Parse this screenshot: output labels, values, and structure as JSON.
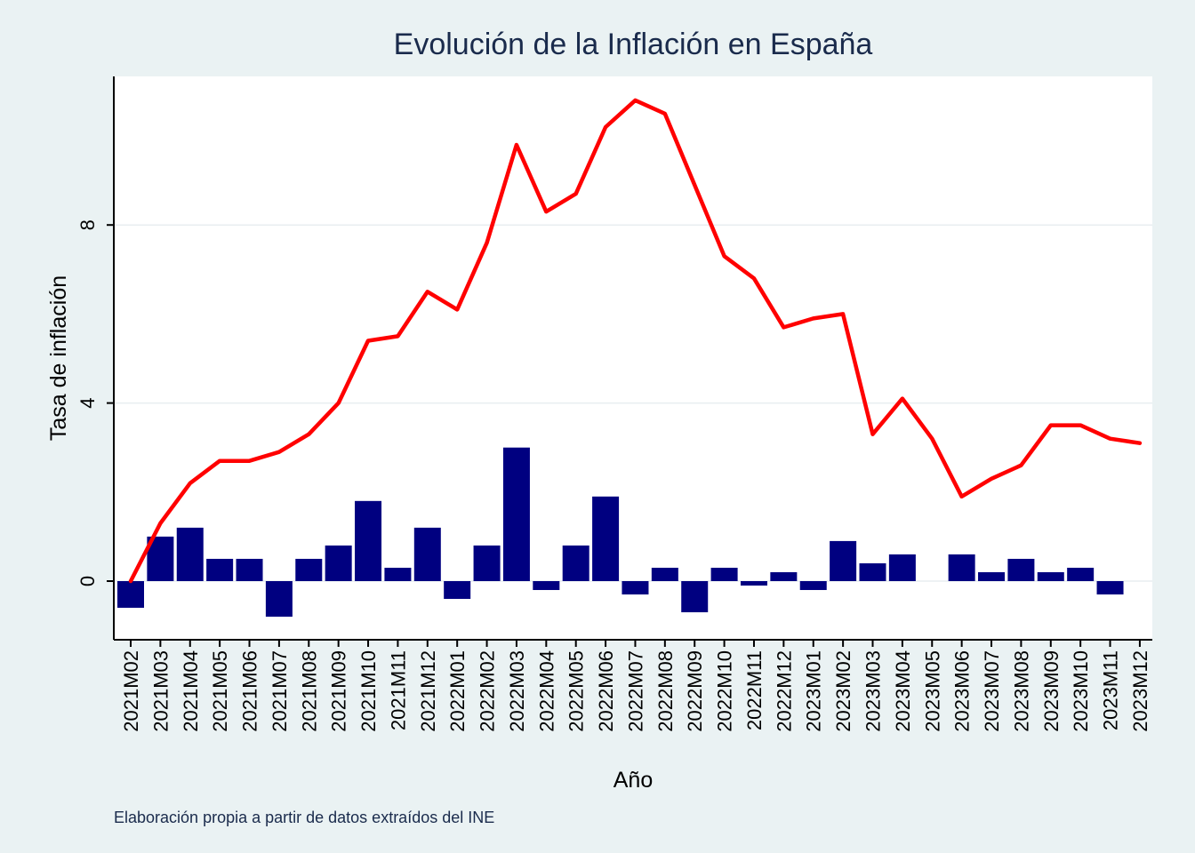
{
  "chart_data": {
    "type": "bar",
    "title": "Evolución de la Inflación en España",
    "xlabel": "Año",
    "ylabel": "Tasa de inflación",
    "note": "Elaboración propia a partir de datos extraídos del INE",
    "ylim": [
      -1.3,
      11.4
    ],
    "yticks": [
      0,
      4,
      8
    ],
    "grid": true,
    "legend": "none",
    "categories": [
      "2021M02",
      "2021M03",
      "2021M04",
      "2021M05",
      "2021M06",
      "2021M07",
      "2021M08",
      "2021M09",
      "2021M10",
      "2021M11",
      "2021M12",
      "2022M01",
      "2022M02",
      "2022M03",
      "2022M04",
      "2022M05",
      "2022M06",
      "2022M07",
      "2022M08",
      "2022M09",
      "2022M10",
      "2022M11",
      "2022M12",
      "2023M01",
      "2023M02",
      "2023M03",
      "2023M04",
      "2023M05",
      "2023M06",
      "2023M07",
      "2023M08",
      "2023M09",
      "2023M10",
      "2023M11",
      "2023M12"
    ],
    "series": [
      {
        "type": "bar",
        "color": "#000080",
        "values": [
          -0.6,
          1.0,
          1.2,
          0.5,
          0.5,
          -0.8,
          0.5,
          0.8,
          1.8,
          0.3,
          1.2,
          -0.4,
          0.8,
          3.0,
          -0.2,
          0.8,
          1.9,
          -0.3,
          0.3,
          -0.7,
          0.3,
          -0.1,
          0.2,
          -0.2,
          0.9,
          0.4,
          0.6,
          0.0,
          0.6,
          0.2,
          0.5,
          0.2,
          0.3,
          -0.3,
          0.0
        ]
      },
      {
        "type": "line",
        "color": "#ff0000",
        "values": [
          0.0,
          1.3,
          2.2,
          2.7,
          2.7,
          2.9,
          3.3,
          4.0,
          5.4,
          5.5,
          6.5,
          6.1,
          7.6,
          9.8,
          8.3,
          8.7,
          10.2,
          10.8,
          10.5,
          8.9,
          7.3,
          6.8,
          5.7,
          5.9,
          6.0,
          3.3,
          4.1,
          3.2,
          1.9,
          2.3,
          2.6,
          3.5,
          3.5,
          3.2,
          3.1
        ]
      }
    ]
  }
}
